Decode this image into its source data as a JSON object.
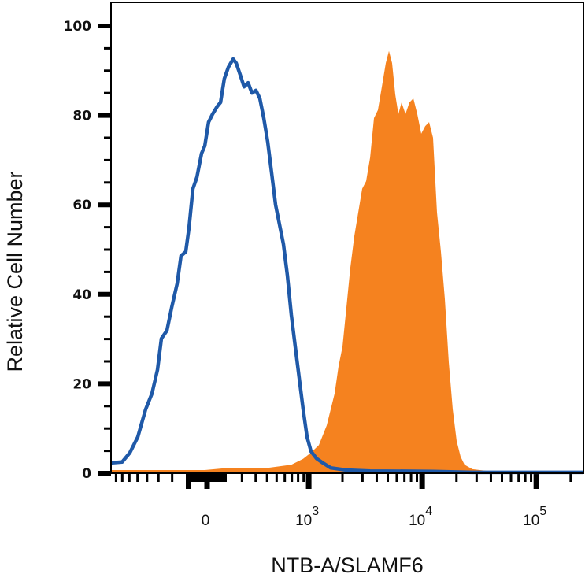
{
  "chart_data": {
    "type": "area",
    "xlabel": "NTB-A/SLAMF6",
    "ylabel": "Relative Cell Number",
    "x_scale": "logicle",
    "xlim": [
      -890,
      258300
    ],
    "ylim": [
      0,
      100
    ],
    "y_ticks": [
      0,
      20,
      40,
      60,
      80,
      100
    ],
    "x_ticks": [
      {
        "value": 0,
        "base": "0",
        "exp": ""
      },
      {
        "value": 1000,
        "base": "10",
        "exp": "3"
      },
      {
        "value": 10000,
        "base": "10",
        "exp": "4"
      },
      {
        "value": 100000,
        "base": "10",
        "exp": "5"
      }
    ],
    "grid": false,
    "colors": {
      "isotype": "#1f59a8",
      "stained": "#f5821f",
      "axis": "#000000"
    },
    "series": [
      {
        "style": "filled",
        "color": "#f5821f",
        "x": [
          -890,
          -12,
          116,
          406,
          692,
          890,
          1048,
          1235,
          1451,
          1703,
          1847,
          1999,
          2167,
          2348,
          2541,
          2753,
          2982,
          3228,
          3500,
          3786,
          4098,
          4441,
          4805,
          5122,
          5457,
          5816,
          6196,
          6605,
          7150,
          7739,
          8384,
          9076,
          9825,
          10637,
          11512,
          12470,
          13493,
          14604,
          15825,
          17122,
          18537,
          20069,
          21720,
          23515,
          27560,
          37860,
          258300
        ],
        "y": [
          0.7,
          0.7,
          1.2,
          1.2,
          1.9,
          3.2,
          4.6,
          6.3,
          10.7,
          17.8,
          23.9,
          28.3,
          37.1,
          46.0,
          53.0,
          58.3,
          63.6,
          65.3,
          70.6,
          79.4,
          81.2,
          86.4,
          91.7,
          94.4,
          91.7,
          84.7,
          80.3,
          82.9,
          80.3,
          82.9,
          83.8,
          80.3,
          75.9,
          77.6,
          78.5,
          75.0,
          58.3,
          49.5,
          38.9,
          24.8,
          14.3,
          7.2,
          3.7,
          1.9,
          0.9,
          0.5,
          0.5
        ]
      },
      {
        "style": "line",
        "color": "#1f59a8",
        "x": [
          -890,
          -703,
          -593,
          -497,
          -414,
          -355,
          -308,
          -277,
          -236,
          -203,
          -168,
          -144,
          -116,
          -98,
          -76,
          -54,
          -29,
          -12,
          8,
          29,
          54,
          72,
          93,
          116,
          144,
          163,
          188,
          214,
          242,
          271,
          302,
          334,
          369,
          406,
          446,
          488,
          534,
          583,
          635,
          692,
          753,
          819,
          890,
          966,
          1048,
          1175,
          1339,
          1572,
          2167,
          3500,
          12470,
          27560,
          258300
        ],
        "y": [
          2.3,
          2.5,
          4.6,
          8.1,
          14.3,
          17.8,
          23.1,
          30.1,
          31.9,
          37.1,
          42.4,
          48.6,
          49.5,
          54.8,
          63.6,
          66.2,
          71.5,
          73.2,
          78.5,
          80.3,
          82.0,
          82.9,
          88.2,
          90.8,
          92.6,
          91.7,
          89.1,
          86.4,
          87.3,
          85.0,
          85.6,
          83.8,
          79.4,
          74.1,
          67.1,
          60.0,
          55.6,
          51.2,
          44.2,
          35.4,
          28.3,
          21.3,
          14.3,
          8.1,
          4.9,
          3.3,
          2.3,
          1.2,
          0.7,
          0.5,
          0.4,
          0.2,
          0.2
        ]
      }
    ]
  }
}
